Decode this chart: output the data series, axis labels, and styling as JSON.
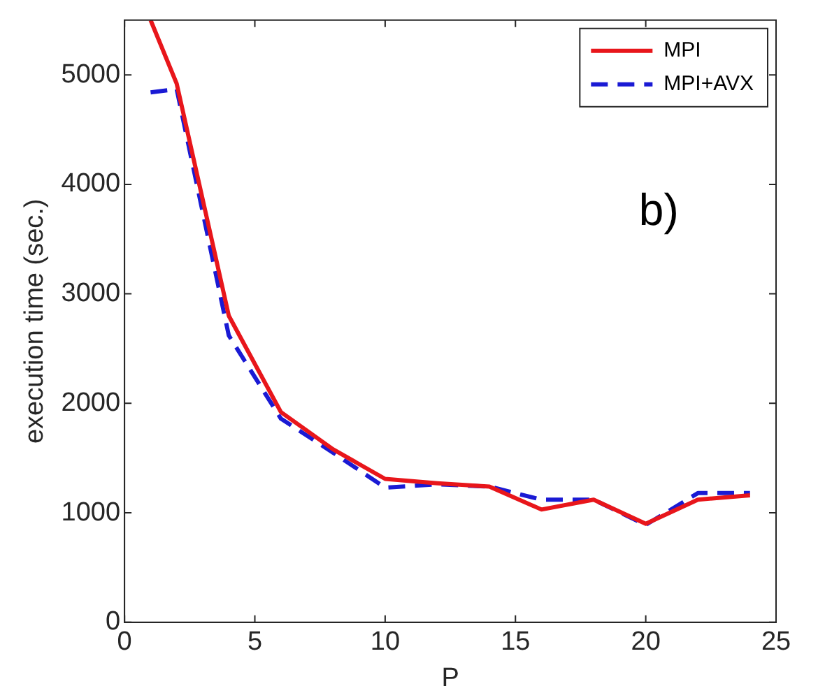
{
  "chart_data": {
    "type": "line",
    "xlabel": "P",
    "ylabel": "execution time (sec.)",
    "annotations": [
      "b)"
    ],
    "xlim": [
      0,
      25
    ],
    "xticks": [
      0,
      5,
      10,
      15,
      20,
      25
    ],
    "ylim": [
      0,
      5500
    ],
    "yticks": [
      0,
      1000,
      2000,
      3000,
      4000,
      5000
    ],
    "grid": false,
    "legend": "top right",
    "marker": "none",
    "series": [
      {
        "name": "MPI",
        "color": "#e8161b",
        "line_style": "solid",
        "x": [
          1,
          2,
          4,
          6,
          8,
          10,
          12,
          14,
          16,
          18,
          20,
          22,
          24
        ],
        "values": [
          5500,
          4920,
          2800,
          1920,
          1580,
          1310,
          1270,
          1240,
          1030,
          1120,
          900,
          1120,
          1160
        ]
      },
      {
        "name": "MPI+AVX",
        "color": "#1a1ad4",
        "line_style": "dashed",
        "x": [
          1,
          2,
          4,
          6,
          8,
          10,
          12,
          14,
          16,
          18,
          20,
          22,
          24
        ],
        "values": [
          4840,
          4870,
          2620,
          1860,
          1550,
          1230,
          1260,
          1240,
          1120,
          1120,
          890,
          1180,
          1180
        ]
      }
    ]
  }
}
